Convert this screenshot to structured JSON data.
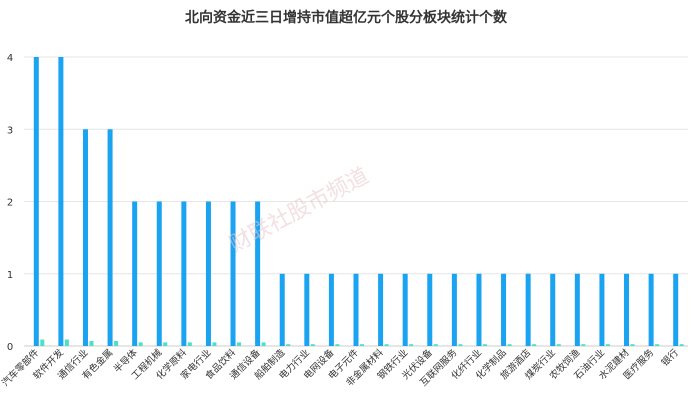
{
  "chart_data": {
    "type": "bar",
    "title": "北向资金近三日增持市值超亿元个股分板块统计个数",
    "xlabel": "",
    "ylabel": "",
    "ylim": [
      0,
      4
    ],
    "yticks": [
      "0",
      "1",
      "2",
      "3",
      "4"
    ],
    "grid": true,
    "legend": "none",
    "categories": [
      "汽车零部件",
      "软件开发",
      "通信行业",
      "有色金属",
      "半导体",
      "工程机械",
      "化学原料",
      "家电行业",
      "食品饮料",
      "通信设备",
      "船舶制造",
      "电力行业",
      "电网设备",
      "电子元件",
      "非金属材料",
      "钢铁行业",
      "光伏设备",
      "互联网服务",
      "化纤行业",
      "化学制品",
      "旅游酒店",
      "煤炭行业",
      "农牧饲渔",
      "石油行业",
      "水泥建材",
      "医疗服务",
      "银行"
    ],
    "series": [
      {
        "values": [
          4,
          4,
          3,
          3,
          2,
          2,
          2,
          2,
          2,
          2,
          1,
          1,
          1,
          1,
          1,
          1,
          1,
          1,
          1,
          1,
          1,
          1,
          1,
          1,
          1,
          1,
          1
        ]
      },
      {
        "values": [
          0.09,
          0.09,
          0.07,
          0.07,
          0.05,
          0.05,
          0.05,
          0.05,
          0.05,
          0.05,
          0.025,
          0.025,
          0.025,
          0.025,
          0.025,
          0.025,
          0.025,
          0.025,
          0.025,
          0.025,
          0.025,
          0.025,
          0.025,
          0.025,
          0.025,
          0.025,
          0.025
        ]
      }
    ],
    "colors": {
      "primary": "#1aa3f0",
      "secondary": "#4ee0c6"
    }
  },
  "watermark": {
    "text": "财联社股市频道"
  }
}
